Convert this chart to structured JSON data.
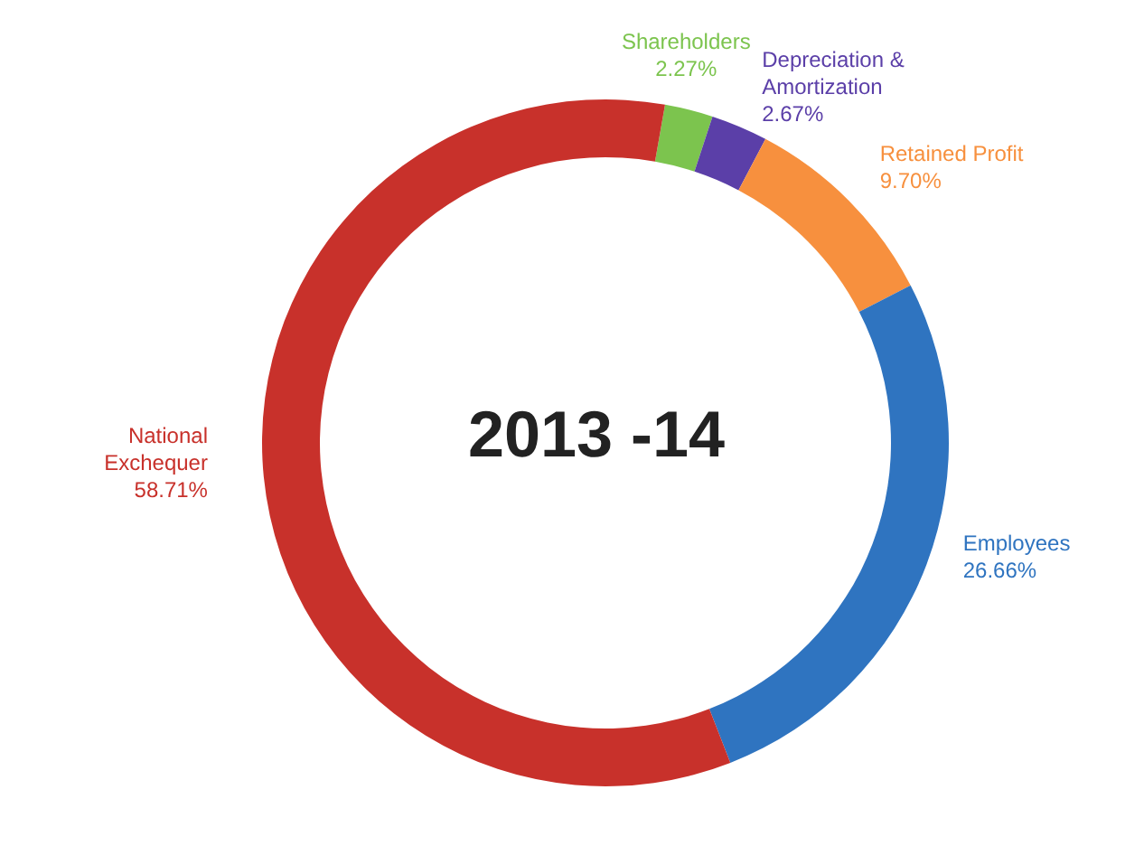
{
  "chart_data": {
    "type": "donut",
    "title": "2013 -14",
    "categories": [
      "Shareholders",
      "Depreciation & Amortization",
      "Retained Profit",
      "Employees",
      "National Exchequer"
    ],
    "values": [
      2.27,
      2.67,
      9.7,
      26.66,
      58.71
    ],
    "value_labels": [
      "2.27%",
      "2.67%",
      "9.70%",
      "26.66%",
      "58.71%"
    ],
    "colors": [
      "#7cc44e",
      "#5b3fa8",
      "#f7903e",
      "#2f74c0",
      "#c8312b"
    ],
    "legend": false
  }
}
